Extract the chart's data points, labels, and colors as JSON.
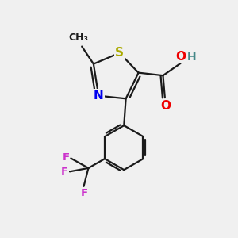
{
  "background_color": "#f0f0f0",
  "bond_color": "#1a1a1a",
  "bond_width": 1.6,
  "sulfur_color": "#aaaa00",
  "nitrogen_color": "#0000ee",
  "oxygen_color": "#ee0000",
  "fluorine_color": "#cc33cc",
  "hydrogen_color": "#448888",
  "font_size_atom": 11,
  "font_size_small": 9.5,
  "fig_w": 3.0,
  "fig_h": 3.0,
  "dpi": 100,
  "xlim": [
    0,
    10
  ],
  "ylim": [
    0,
    10
  ]
}
